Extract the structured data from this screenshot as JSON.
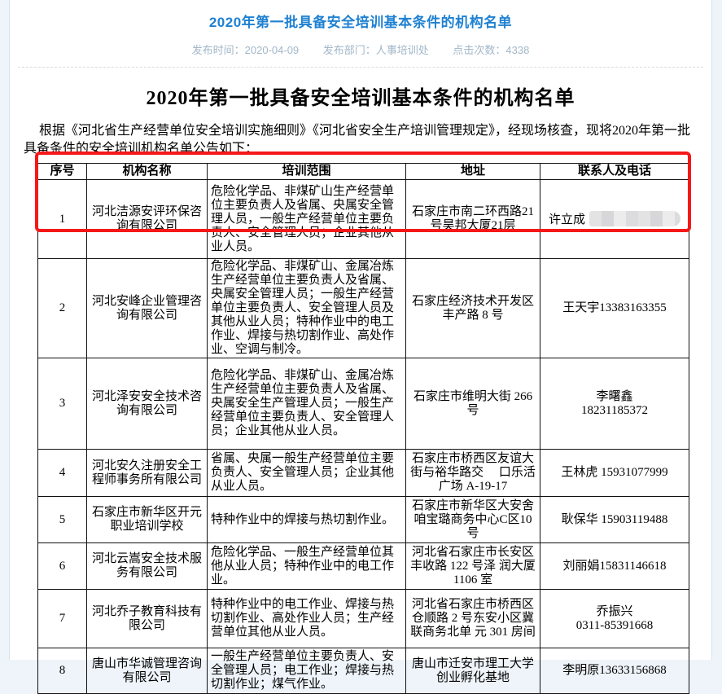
{
  "colors": {
    "banner_title": "#1f81d2",
    "banner_meta": "#a2b7c9",
    "highlight_border": "#f51818",
    "page_background": "#eef4fa"
  },
  "banner": {
    "title": "2020年第一批具备安全培训基本条件的机构名单",
    "meta": [
      "发布时间：2020-04-09",
      "发布部门：人事培训处",
      "点击次数：4338"
    ]
  },
  "article": {
    "heading": "2020年第一批具备安全培训基本条件的机构名单",
    "intro": "根据《河北省生产经营单位安全培训实施细则》《河北省安全生产培训管理规定》，经现场核查，现将2020年第一批具备条件的安全培训机构名单公告如下：",
    "table": {
      "headers": [
        "序号",
        "机构名称",
        "培训范围",
        "地址",
        "联系人及电话"
      ],
      "rows": [
        {
          "no": "1",
          "name": "河北洁源安评环保咨询有限公司",
          "scope": "危险化学品、非煤矿山生产经营单位主要负责人及省属、央属安全管理人员，一般生产经营单位主要负责人、安全管理人员；企业其他从业人员。",
          "address": "石家庄市南二环西路21号昊邦大厦21层",
          "contact": "许立成",
          "contact_redacted": true,
          "highlighted": true
        },
        {
          "no": "2",
          "name": "河北安峰企业管理咨询有限公司",
          "scope": "危险化学品、非煤矿山、金属冶炼生产经营单位主要负责人及省属、央属安全管理人员；一般生产经营单位主要负责人、安全管理人员及其他从业人员；特种作业中的电工作业、焊接与热切割作业、高处作业、空调与制冷。",
          "address": "石家庄经济技术开发区丰产路 8 号",
          "contact": "王天宇13383163355"
        },
        {
          "no": "3",
          "name": "河北泽安安全技术咨询有限公司",
          "scope": "危险化学品、非煤矿山、金属冶炼生产经营单位主要负责人及省属、央属安全生产管理人员；一般生产经营单位主要负责人、安全管理人员；企业其他从业人员。",
          "address": "石家庄市维明大街 266 号",
          "contact": "李曙鑫\n18231185372"
        },
        {
          "no": "4",
          "name": "河北安久注册安全工程师事务所有限公司",
          "scope": "省属、央属一般生产经营单位主要负责人、安全管理人员；企业其他从业人员。",
          "address": "石家庄市桥西区友谊大街与裕华路交　 口乐活广场 A-19-17",
          "contact": "王林虎 15931077999"
        },
        {
          "no": "5",
          "name": "石家庄市新华区开元职业培训学校",
          "scope": "特种作业中的焊接与热切割作业。",
          "address": "石家庄市新华区大安舍咱宝璐商务中心C区10号",
          "contact": "耿保华 15903119488"
        },
        {
          "no": "6",
          "name": "河北云嵩安全技术服务有限公司",
          "scope": "危险化学品、一般生产经营单位其他从业人员；特种作业中的电工作业。",
          "address": "河北省石家庄市长安区丰收路 122 号泽 润大厦 1106 室",
          "contact": "刘丽娟15831146618"
        },
        {
          "no": "7",
          "name": "河北乔子教育科技有限公司",
          "scope": "特种作业中的电工作业、焊接与热切割作业、高处作业人员；生产经营单位其他从业人员。",
          "address": "河北省石家庄市桥西区仓顺路 2 号东安小区冀联商务北单 元 301 房间",
          "contact": "乔振兴\n0311-85391668"
        },
        {
          "no": "8",
          "name": "唐山市华诚管理咨询有限公司",
          "scope": "一般生产经营单位主要负责人、安全管理人员；电工作业；焊接与热切割作业；煤气作业。",
          "address": "唐山市迁安市理工大学创业孵化基地",
          "contact": "李明原13633156868"
        }
      ]
    }
  }
}
